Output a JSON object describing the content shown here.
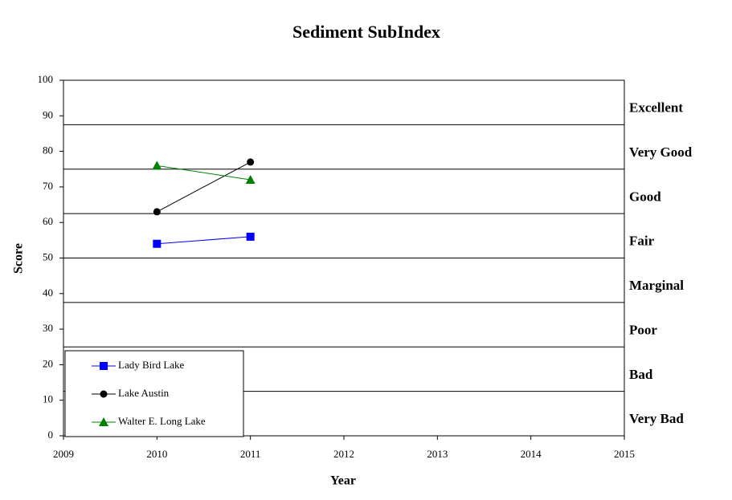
{
  "chart_data": {
    "type": "line",
    "title": "Sediment SubIndex",
    "x_label": "Year",
    "y_label": "Score",
    "x": [
      2010,
      2011
    ],
    "series": [
      {
        "name": "Lady Bird Lake",
        "color": "#0000ff",
        "marker": "square",
        "values": [
          54,
          56
        ]
      },
      {
        "name": "Lake Austin",
        "color": "#000000",
        "marker": "circle",
        "values": [
          63,
          77
        ]
      },
      {
        "name": "Walter E. Long Lake",
        "color": "#008000",
        "marker": "triangle",
        "values": [
          76,
          72
        ]
      }
    ],
    "xlim": [
      2009,
      2015
    ],
    "xticks": [
      2009,
      2010,
      2011,
      2012,
      2013,
      2014,
      2015
    ],
    "ylim": [
      0,
      100
    ],
    "yticks": [
      0,
      10,
      20,
      30,
      40,
      50,
      60,
      70,
      80,
      90,
      100
    ],
    "bands": [
      {
        "label": "Very Bad",
        "from": 0,
        "to": 12.5
      },
      {
        "label": "Bad",
        "from": 12.5,
        "to": 25
      },
      {
        "label": "Poor",
        "from": 25,
        "to": 37.5
      },
      {
        "label": "Marginal",
        "from": 37.5,
        "to": 50
      },
      {
        "label": "Fair",
        "from": 50,
        "to": 62.5
      },
      {
        "label": "Good",
        "from": 62.5,
        "to": 75
      },
      {
        "label": "Very Good",
        "from": 75,
        "to": 87.5
      },
      {
        "label": "Excellent",
        "from": 87.5,
        "to": 100
      }
    ],
    "legend": "bottom-left"
  }
}
